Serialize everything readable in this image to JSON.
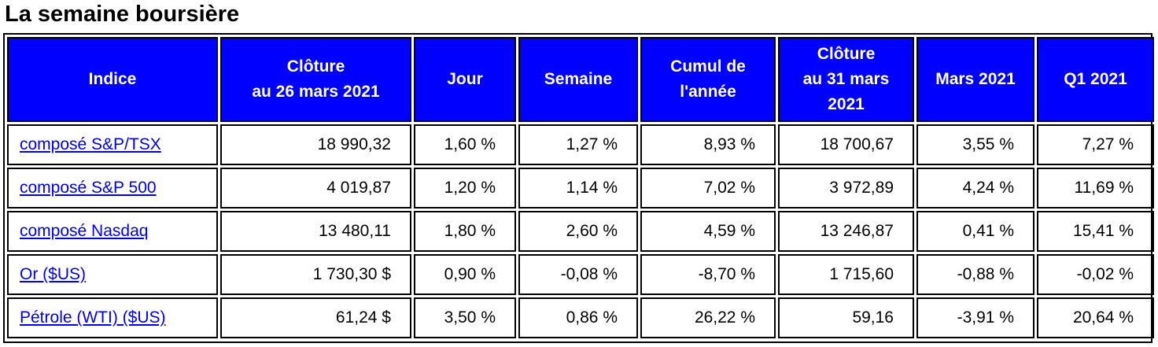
{
  "title": "La semaine boursière",
  "colors": {
    "header_bg": "#0000ff",
    "header_text": "#ffffff",
    "link": "#0000ee"
  },
  "table": {
    "headers": [
      {
        "lines": [
          "Indice"
        ]
      },
      {
        "lines": [
          "Clôture",
          "au 26 mars 2021"
        ]
      },
      {
        "lines": [
          "Jour"
        ]
      },
      {
        "lines": [
          "Semaine"
        ]
      },
      {
        "lines": [
          "Cumul de",
          "l'année"
        ]
      },
      {
        "lines": [
          "Clôture",
          "au 31 mars",
          "2021"
        ]
      },
      {
        "lines": [
          "Mars 2021"
        ]
      },
      {
        "lines": [
          "Q1 2021"
        ]
      }
    ],
    "rows": [
      {
        "cells": [
          "composé S&P/TSX",
          "18 990,32",
          "1,60 %",
          "1,27 %",
          "8,93 %",
          "18 700,67",
          "3,55 %",
          "7,27 %"
        ]
      },
      {
        "cells": [
          "composé S&P 500",
          "4 019,87",
          "1,20 %",
          "1,14 %",
          "7,02 %",
          "3 972,89",
          "4,24 %",
          "11,69 %"
        ]
      },
      {
        "cells": [
          "composé Nasdaq",
          "13 480,11",
          "1,80 %",
          "2,60 %",
          "4,59 %",
          "13 246,87",
          "0,41 %",
          "15,41 %"
        ]
      },
      {
        "cells": [
          "Or ($US)",
          "1 730,30 $",
          "0,90 %",
          "-0,08 %",
          "-8,70 %",
          "1 715,60",
          "-0,88 %",
          "-0,02 %"
        ]
      },
      {
        "cells": [
          "Pétrole (WTI) ($US)",
          "61,24 $",
          "3,50 %",
          "0,86 %",
          "26,22 %",
          "59,16",
          "-3,91 %",
          "20,64 %"
        ]
      }
    ]
  }
}
